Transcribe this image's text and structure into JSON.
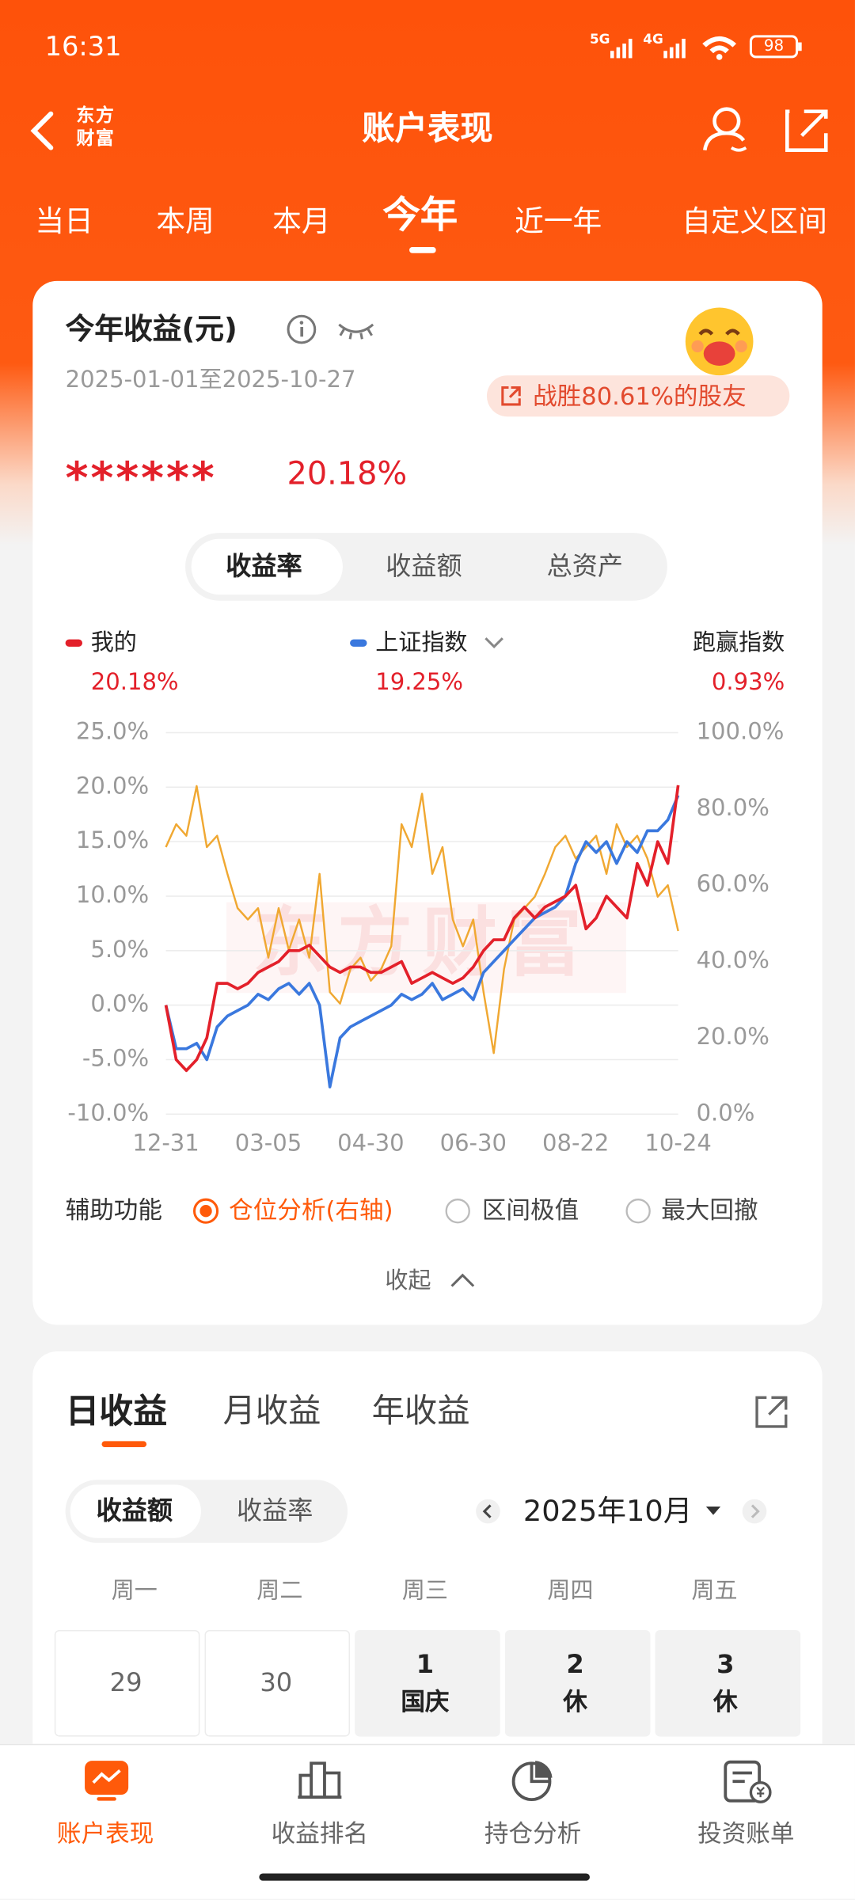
{
  "status_bar": {
    "time": "16:31",
    "network": [
      "5G",
      "4G"
    ],
    "battery": 98
  },
  "header": {
    "logo": "东方财富",
    "title": "账户表现"
  },
  "period_tabs": [
    "当日",
    "本周",
    "本月",
    "今年",
    "近一年",
    "自定义区间"
  ],
  "summary": {
    "title": "今年收益(元)",
    "date_range": "2025-01-01至2025-10-27",
    "badge": "战胜80.61%的股友",
    "hidden_amount": "******",
    "return": "20.18%"
  },
  "metric_tabs": [
    "收益率",
    "收益额",
    "总资产"
  ],
  "legend_values": [
    "20.18%",
    "19.25%",
    "0.93%"
  ],
  "excess_label": "跑赢指数",
  "chart_data": {
    "type": "line",
    "watermark": "东方财富",
    "categories": [
      "12-31",
      null,
      null,
      null,
      null,
      null,
      null,
      null,
      null,
      null,
      "03-05",
      null,
      null,
      null,
      null,
      null,
      null,
      null,
      null,
      null,
      "04-30",
      null,
      null,
      null,
      null,
      null,
      null,
      null,
      null,
      null,
      "06-30",
      null,
      null,
      null,
      null,
      null,
      null,
      null,
      null,
      null,
      "08-22",
      null,
      null,
      null,
      null,
      null,
      null,
      null,
      null,
      null,
      "10-24"
    ],
    "series": [
      {
        "name": "我的",
        "color": "#e3202a",
        "values": [
          0,
          -5,
          -6,
          -5,
          -3,
          2,
          2,
          1.5,
          2,
          3,
          3.5,
          4,
          5,
          5,
          5.5,
          4.5,
          3.5,
          3,
          3.5,
          3.5,
          3,
          3,
          3.5,
          4,
          2,
          2.5,
          3,
          2.5,
          2,
          2.5,
          3.5,
          5,
          6,
          6,
          8,
          9,
          8,
          9,
          9.5,
          10,
          11,
          7,
          8,
          10,
          9,
          8,
          13,
          11,
          15,
          13,
          20.18
        ]
      },
      {
        "name": "上证指数",
        "color": "#3a78de",
        "values": [
          0,
          -4,
          -4,
          -3.5,
          -5,
          -2,
          -1,
          -0.5,
          0,
          1,
          0.5,
          1.5,
          2,
          1,
          2,
          0,
          -7.5,
          -3,
          -2,
          -1.5,
          -1,
          -0.5,
          0,
          1,
          0.5,
          1,
          2,
          0.5,
          1,
          1.5,
          0.5,
          3,
          4,
          5,
          6,
          7,
          8,
          8.5,
          9,
          10,
          13,
          15,
          14,
          15,
          13,
          15,
          14,
          16,
          16,
          17,
          19.25
        ]
      },
      {
        "name": "仓位分析(右轴)",
        "color": "#f0a832",
        "axis": "y2",
        "values": [
          70,
          76,
          73,
          86,
          70,
          73,
          63,
          54,
          51,
          54,
          41,
          54,
          43,
          51,
          41,
          63,
          32,
          29,
          38,
          41,
          35,
          38,
          44,
          76,
          70,
          84,
          63,
          70,
          51,
          44,
          51,
          32,
          16,
          38,
          51,
          54,
          57,
          63,
          70,
          73,
          67,
          70,
          73,
          63,
          76,
          70,
          73,
          67,
          57,
          60,
          48
        ]
      }
    ],
    "ylim": [
      -10,
      25
    ],
    "yticks": [
      {
        "value": -10,
        "label": "-10.0%"
      },
      {
        "value": -5,
        "label": "-5.0%"
      },
      {
        "value": 0,
        "label": "0.0%"
      },
      {
        "value": 5,
        "label": "5.0%"
      },
      {
        "value": 10,
        "label": "10.0%"
      },
      {
        "value": 15,
        "label": "15.0%"
      },
      {
        "value": 20,
        "label": "20.0%"
      },
      {
        "value": 25,
        "label": "25.0%"
      }
    ],
    "y2lim": [
      0,
      100
    ],
    "y2ticks": [
      {
        "value": 0,
        "label": "0.0%"
      },
      {
        "value": 20,
        "label": "20.0%"
      },
      {
        "value": 40,
        "label": "40.0%"
      },
      {
        "value": 60,
        "label": "60.0%"
      },
      {
        "value": 80,
        "label": "80.0%"
      },
      {
        "value": 100,
        "label": "100.0%"
      }
    ],
    "grid": true
  },
  "aux": {
    "label": "辅助功能",
    "options": [
      "区间极值",
      "最大回撤"
    ],
    "collapse": "收起"
  },
  "profit_tabs": [
    "日收益",
    "月收益",
    "年收益"
  ],
  "profit_toggle": [
    "收益额",
    "收益率"
  ],
  "calendar": {
    "month": "2025年10月",
    "weekdays": [
      "周一",
      "周二",
      "周三",
      "周四",
      "周五"
    ],
    "cells": [
      {
        "day": 29
      },
      {
        "day": 30
      },
      {
        "day": 1,
        "note": "国庆"
      },
      {
        "day": 2,
        "note": "休"
      },
      {
        "day": 3,
        "note": "休"
      }
    ]
  },
  "bottom_nav": [
    "账户表现",
    "收益排名",
    "持仓分析",
    "投资账单"
  ]
}
